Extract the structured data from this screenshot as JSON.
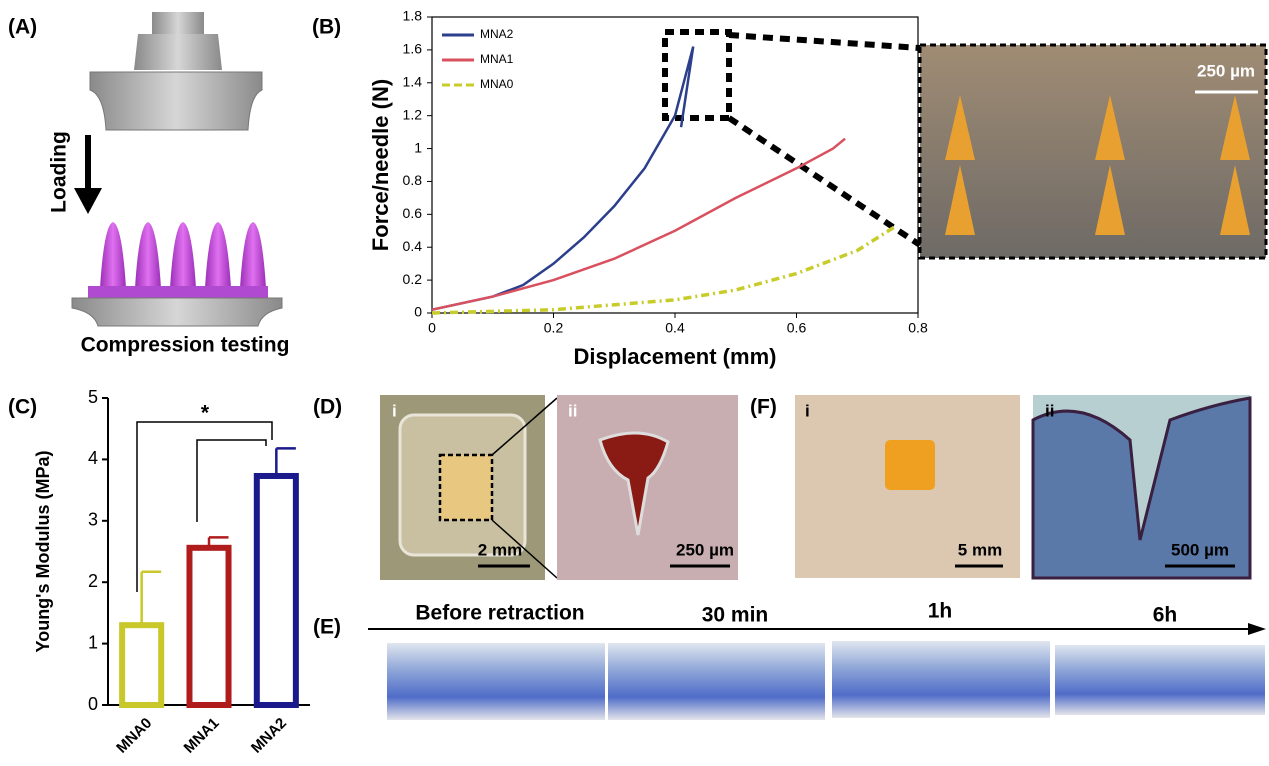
{
  "chart_data": [
    {
      "type": "line",
      "xlabel": "Displacement (mm)",
      "ylabel": "Force/needle (N)",
      "xlim": [
        0,
        0.8
      ],
      "ylim": [
        0,
        1.8
      ],
      "xticks": [
        0,
        0.2,
        0.4,
        0.6,
        0.8
      ],
      "yticks": [
        0,
        0.2,
        0.4,
        0.6,
        0.8,
        1,
        1.2,
        1.4,
        1.6,
        1.8
      ],
      "legend": "upper left",
      "series": [
        {
          "name": "MNA2",
          "color": "#2b3f8c",
          "dash": false,
          "x": [
            0,
            0.1,
            0.15,
            0.2,
            0.25,
            0.3,
            0.35,
            0.4,
            0.43,
            0.41
          ],
          "values": [
            0.02,
            0.1,
            0.17,
            0.3,
            0.46,
            0.65,
            0.88,
            1.2,
            1.62,
            1.13
          ]
        },
        {
          "name": "MNA1",
          "color": "#d9505f",
          "dash": false,
          "x": [
            0,
            0.1,
            0.2,
            0.3,
            0.4,
            0.5,
            0.6,
            0.66,
            0.68
          ],
          "values": [
            0.02,
            0.1,
            0.2,
            0.33,
            0.5,
            0.7,
            0.88,
            1,
            1.06
          ]
        },
        {
          "name": "MNA0",
          "color": "#c8cc2a",
          "dash": true,
          "x": [
            0,
            0.2,
            0.4,
            0.5,
            0.6,
            0.7,
            0.76
          ],
          "values": [
            0,
            0.02,
            0.08,
            0.14,
            0.24,
            0.38,
            0.52
          ]
        }
      ]
    },
    {
      "type": "bar",
      "ylabel": "Young's Modulus (MPa)",
      "categories": [
        "MNA0",
        "MNA1",
        "MNA2"
      ],
      "values": [
        1.3,
        2.56,
        3.73
      ],
      "errors": [
        0.87,
        0.17,
        0.45
      ],
      "colors": [
        "#c8c82a",
        "#b01c1c",
        "#1a1a8c"
      ],
      "ylim": [
        0,
        5
      ],
      "yticks": [
        0,
        1,
        2,
        3,
        4,
        5
      ],
      "significance": "*"
    }
  ],
  "panels": {
    "a": {
      "label": "(A)",
      "arrow_text": "Loading",
      "caption": "Compression testing"
    },
    "b": {
      "label": "(B)",
      "scale_bar": "250 µm"
    },
    "c": {
      "label": "(C)"
    },
    "d": {
      "label": "(D)",
      "sub": [
        "i",
        "ii"
      ],
      "scale_bars": [
        "2 mm",
        "250 µm"
      ]
    },
    "e": {
      "label": "(E)",
      "times": [
        "Before retraction",
        "30 min",
        "1h",
        "6h"
      ]
    },
    "f": {
      "label": "(F)",
      "sub": [
        "i",
        "ii"
      ],
      "scale_bars": [
        "5 mm",
        "500 µm"
      ]
    }
  }
}
